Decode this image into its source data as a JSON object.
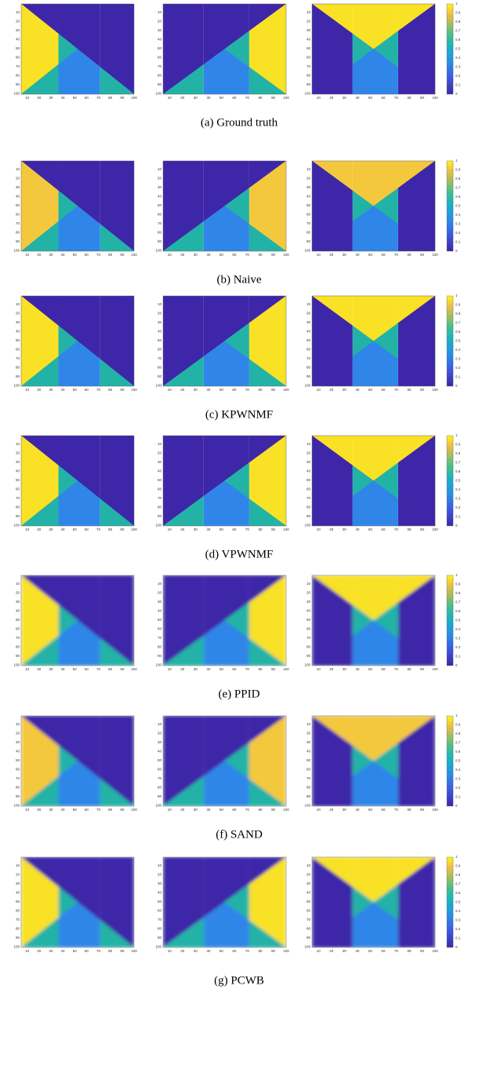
{
  "figure": {
    "x_ticks": [
      10,
      20,
      30,
      40,
      50,
      60,
      70,
      80,
      90,
      100
    ],
    "y_ticks": [
      10,
      20,
      30,
      40,
      50,
      60,
      70,
      80,
      90,
      100
    ],
    "colorbar_ticks": [
      0,
      0.1,
      0.2,
      0.3,
      0.4,
      0.5,
      0.6,
      0.7,
      0.8,
      0.9,
      1
    ],
    "captions": [
      "(a) Ground truth",
      "(b) Naive",
      "(c) KPWNMF",
      "(d) VPWNMF",
      "(e) PPID",
      "(f) SAND",
      "(g) PCWB"
    ]
  }
}
